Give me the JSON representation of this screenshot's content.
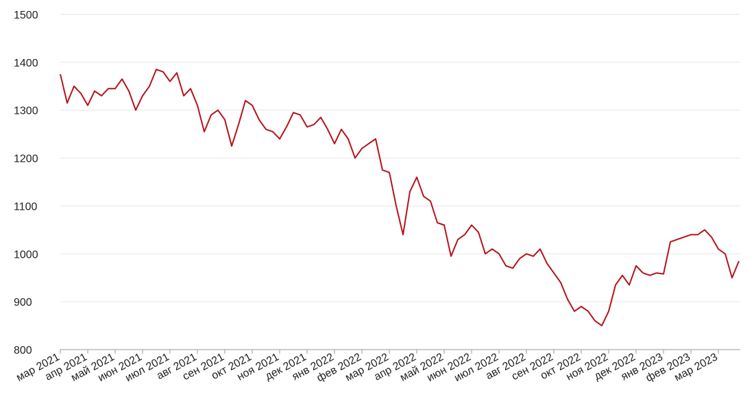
{
  "chart_data": {
    "type": "line",
    "categories": [
      "мар 2021",
      null,
      null,
      null,
      "апр 2021",
      null,
      null,
      null,
      "май 2021",
      null,
      null,
      null,
      "июн 2021",
      null,
      null,
      null,
      "июл 2021",
      null,
      null,
      null,
      "авг 2021",
      null,
      null,
      null,
      "сен 2021",
      null,
      null,
      null,
      "окт 2021",
      null,
      null,
      null,
      "ноя 2021",
      null,
      null,
      null,
      "дек 2021",
      null,
      null,
      null,
      "янв 2022",
      null,
      null,
      null,
      "фев 2022",
      null,
      null,
      null,
      "мар 2022",
      null,
      null,
      null,
      "апр 2022",
      null,
      null,
      null,
      "май 2022",
      null,
      null,
      null,
      "июн 2022",
      null,
      null,
      null,
      "июл 2022",
      null,
      null,
      null,
      "авг 2022",
      null,
      null,
      null,
      "сен 2022",
      null,
      null,
      null,
      "окт 2022",
      null,
      null,
      null,
      "ноя 2022",
      null,
      null,
      null,
      "дек 2022",
      null,
      null,
      null,
      "янв 2023",
      null,
      null,
      null,
      "фев 2023",
      null,
      null,
      null,
      "мар 2023",
      null,
      null,
      null
    ],
    "series": [
      {
        "color": "#b5121b",
        "values": [
          1375,
          1315,
          1350,
          1335,
          1310,
          1340,
          1330,
          1345,
          1345,
          1365,
          1340,
          1300,
          1330,
          1350,
          1385,
          1380,
          1360,
          1378,
          1330,
          1345,
          1310,
          1255,
          1290,
          1300,
          1280,
          1225,
          1270,
          1320,
          1310,
          1280,
          1260,
          1255,
          1240,
          1265,
          1295,
          1290,
          1265,
          1270,
          1285,
          1260,
          1230,
          1260,
          1240,
          1200,
          1220,
          1230,
          1240,
          1175,
          1170,
          1100,
          1040,
          1130,
          1160,
          1120,
          1110,
          1065,
          1060,
          995,
          1030,
          1040,
          1060,
          1045,
          1000,
          1010,
          1000,
          975,
          970,
          990,
          1000,
          995,
          1010,
          980,
          960,
          940,
          905,
          880,
          890,
          880,
          860,
          850,
          880,
          935,
          955,
          935,
          975,
          960,
          955,
          960,
          958,
          1025,
          1030,
          1035,
          1040,
          1040,
          1050,
          1035,
          1010,
          1000,
          950,
          985
        ]
      }
    ],
    "ylim": [
      800,
      1500
    ],
    "yticks": [
      800,
      900,
      1000,
      1100,
      1200,
      1300,
      1400,
      1500
    ],
    "grid": true
  }
}
